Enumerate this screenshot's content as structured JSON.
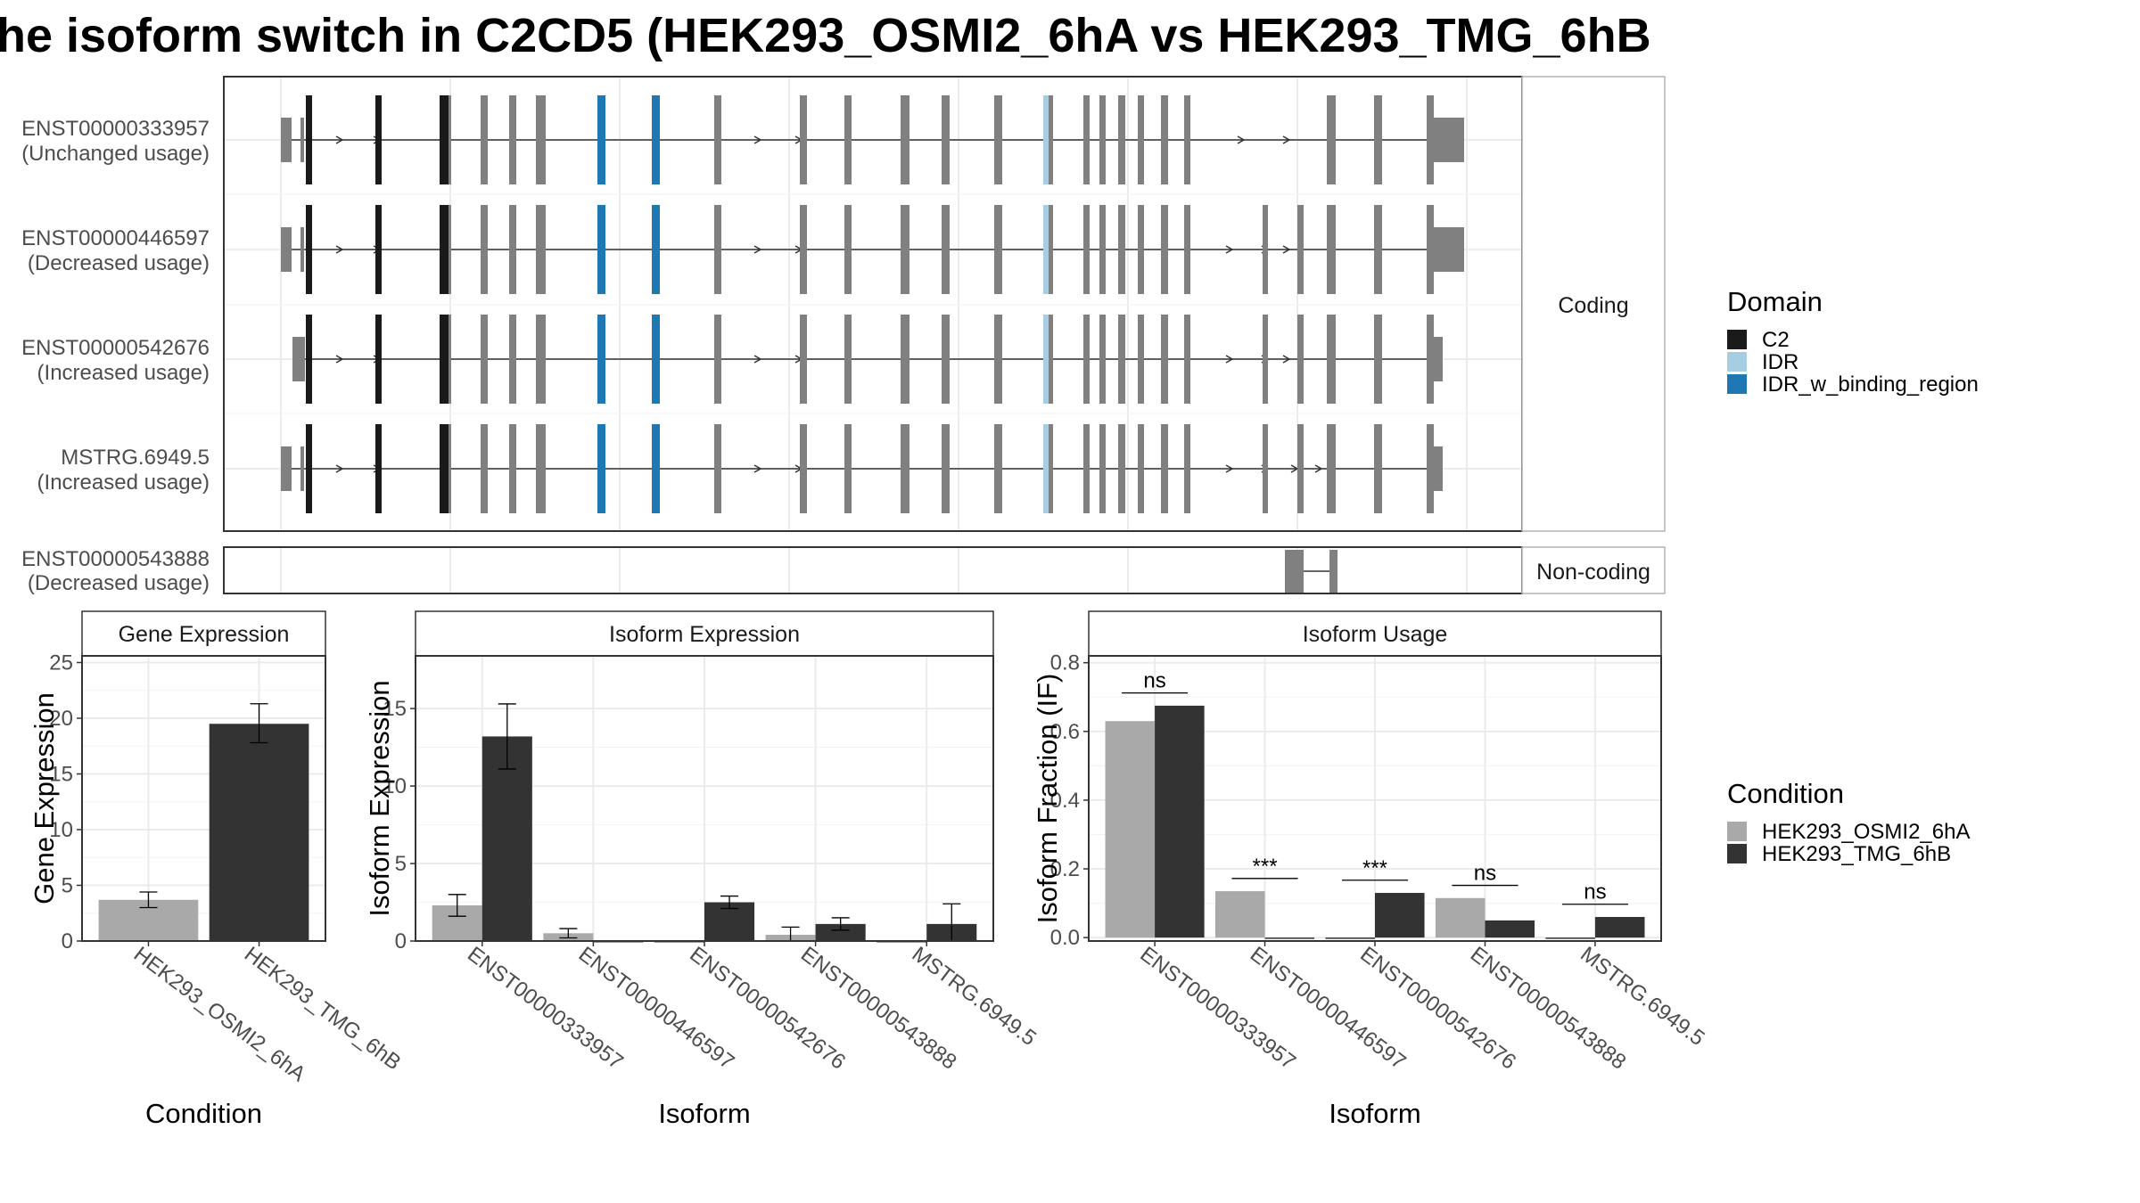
{
  "title": "he isoform switch in C2CD5 (HEK293_OSMI2_6hA vs HEK293_TMG_6hB",
  "colors": {
    "C2": "#1a1a1a",
    "IDR": "#a6cee3",
    "IDR_w_binding_region": "#1f78b4",
    "exon": "#808080",
    "condA": "#a9a9a9",
    "condB": "#333333"
  },
  "structure": {
    "coding_label": "Coding",
    "noncoding_label": "Non-coding",
    "transcripts": [
      {
        "id": "ENST00000333957",
        "usage": "(Unchanged usage)"
      },
      {
        "id": "ENST00000446597",
        "usage": "(Decreased usage)"
      },
      {
        "id": "ENST00000542676",
        "usage": "(Increased usage)"
      },
      {
        "id": "MSTRG.6949.5",
        "usage": "(Increased usage)"
      }
    ],
    "noncoding": {
      "id": "ENST00000543888",
      "usage": "(Decreased usage)"
    }
  },
  "domain_legend": {
    "title": "Domain",
    "items": [
      {
        "name": "C2",
        "color": "#1a1a1a"
      },
      {
        "name": "IDR",
        "color": "#a6cee3"
      },
      {
        "name": "IDR_w_binding_region",
        "color": "#1f78b4"
      }
    ]
  },
  "condition_legend": {
    "title": "Condition",
    "items": [
      {
        "name": "HEK293_OSMI2_6hA",
        "color": "#a9a9a9"
      },
      {
        "name": "HEK293_TMG_6hB",
        "color": "#333333"
      }
    ]
  },
  "chart_data": [
    {
      "type": "bar",
      "title": "Gene Expression",
      "xlabel": "Condition",
      "ylabel": "Gene Expression",
      "ylim": [
        0,
        25.6
      ],
      "yticks": [
        0,
        5,
        10,
        15,
        20,
        25
      ],
      "categories": [
        "HEK293_OSMI2_6hA",
        "HEK293_TMG_6hB"
      ],
      "values": [
        3.7,
        19.5
      ],
      "errors": [
        [
          3.0,
          4.4
        ],
        [
          17.8,
          21.3
        ]
      ]
    },
    {
      "type": "bar",
      "title": "Isoform Expression",
      "xlabel": "Isoform",
      "ylabel": "Isoform Expression",
      "ylim": [
        0,
        18.4
      ],
      "yticks": [
        0,
        5,
        10,
        15
      ],
      "categories": [
        "ENST00000333957",
        "ENST00000446597",
        "ENST00000542676",
        "ENST00000543888",
        "MSTRG.6949.5"
      ],
      "series": [
        {
          "name": "HEK293_OSMI2_6hA",
          "values": [
            2.3,
            0.5,
            0.0,
            0.4,
            0.0
          ],
          "errors": [
            [
              1.6,
              3.0
            ],
            [
              0.2,
              0.8
            ],
            [
              0,
              0
            ],
            [
              0.0,
              0.9
            ],
            [
              0,
              0
            ]
          ]
        },
        {
          "name": "HEK293_TMG_6hB",
          "values": [
            13.2,
            0.0,
            2.5,
            1.1,
            1.1
          ],
          "errors": [
            [
              11.1,
              15.3
            ],
            [
              0,
              0
            ],
            [
              2.1,
              2.9
            ],
            [
              0.7,
              1.5
            ],
            [
              0.0,
              2.4
            ]
          ]
        }
      ]
    },
    {
      "type": "bar",
      "title": "Isoform Usage",
      "xlabel": "Isoform",
      "ylabel": "Isoform Fraction (IF)",
      "ylim": [
        -0.01,
        0.82
      ],
      "yticks": [
        0.0,
        0.2,
        0.4,
        0.6,
        0.8
      ],
      "categories": [
        "ENST00000333957",
        "ENST00000446597",
        "ENST00000542676",
        "ENST00000543888",
        "MSTRG.6949.5"
      ],
      "series": [
        {
          "name": "HEK293_OSMI2_6hA",
          "values": [
            0.63,
            0.135,
            0.0,
            0.115,
            0.0
          ]
        },
        {
          "name": "HEK293_TMG_6hB",
          "values": [
            0.675,
            0.0,
            0.13,
            0.05,
            0.06
          ]
        }
      ],
      "significance": [
        "ns",
        "***",
        "***",
        "ns",
        "ns"
      ]
    }
  ]
}
